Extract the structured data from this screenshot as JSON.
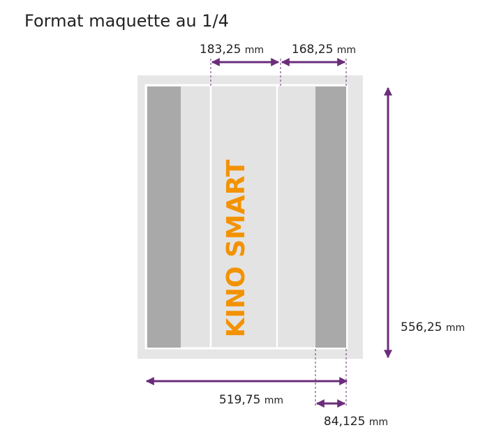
{
  "title": "Format maquette au 1/4",
  "brand": "KINO SMART",
  "dimensions": {
    "top_left": {
      "value": "183,25",
      "unit": "mm"
    },
    "top_right": {
      "value": "168,25",
      "unit": "mm"
    },
    "height": {
      "value": "556,25",
      "unit": "mm"
    },
    "width": {
      "value": "519,75",
      "unit": "mm"
    },
    "strip": {
      "value": "84,125",
      "unit": "mm"
    }
  }
}
